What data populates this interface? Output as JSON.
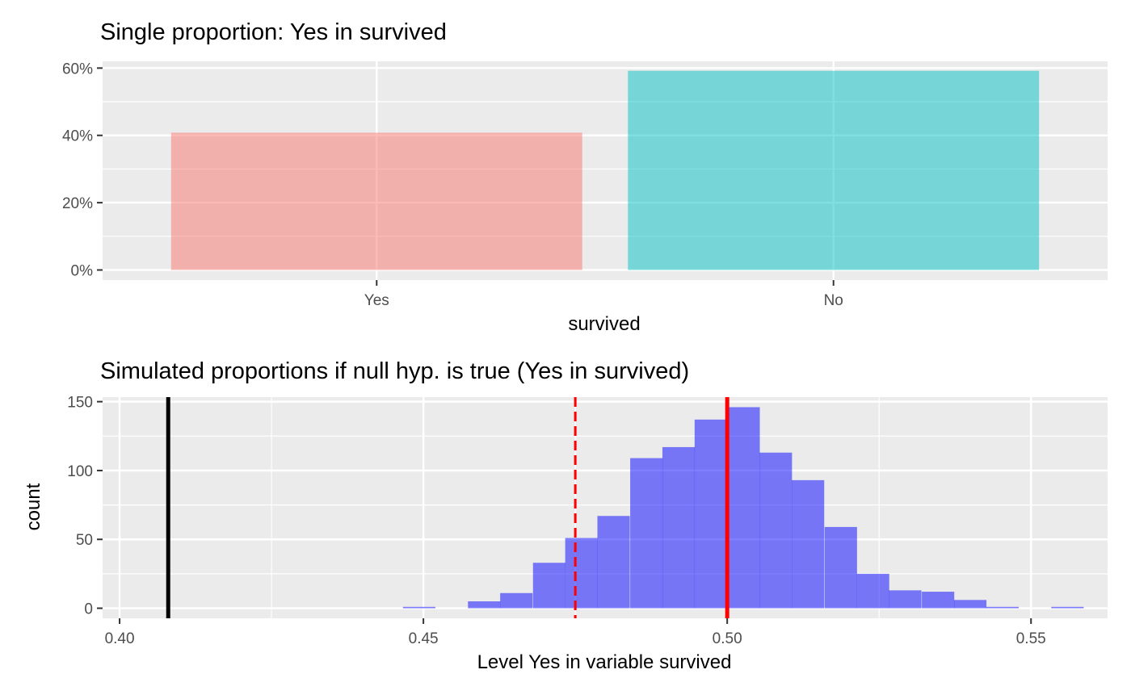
{
  "chart_data": [
    {
      "type": "bar",
      "title": "Single proportion: Yes in survived",
      "xlabel": "survived",
      "ylabel": "",
      "categories": [
        "Yes",
        "No"
      ],
      "values": [
        0.408,
        0.592
      ],
      "colors": [
        "#F8766D",
        "#00BFC4"
      ],
      "ylim": [
        -0.03,
        0.62
      ],
      "yticks": [
        0,
        0.2,
        0.4,
        0.6
      ],
      "ytick_labels": [
        "0%",
        "20%",
        "40%",
        "60%"
      ],
      "grid": true
    },
    {
      "type": "bar",
      "title": "Simulated proportions if null hyp. is true (Yes in survived)",
      "xlabel": "Level Yes in variable survived",
      "ylabel": "count",
      "bin_width": 0.00533,
      "bin_centers": [
        0.4493,
        0.4547,
        0.46,
        0.4653,
        0.4707,
        0.476,
        0.4813,
        0.4867,
        0.492,
        0.4973,
        0.5027,
        0.508,
        0.5133,
        0.5187,
        0.524,
        0.5293,
        0.5347,
        0.54,
        0.5453,
        0.5507,
        0.556
      ],
      "counts": [
        1,
        0,
        5,
        11,
        33,
        51,
        67,
        109,
        117,
        137,
        146,
        113,
        93,
        59,
        25,
        13,
        12,
        6,
        1,
        0,
        1
      ],
      "bar_color": "#0000FF",
      "xlim": [
        0.3972,
        0.5626
      ],
      "ylim": [
        -7.3,
        153.3
      ],
      "xticks": [
        0.4,
        0.45,
        0.5,
        0.55
      ],
      "xtick_labels": [
        "0.40",
        "0.45",
        "0.50",
        "0.55"
      ],
      "yticks": [
        0,
        50,
        100,
        150
      ],
      "ytick_labels": [
        "0",
        "50",
        "100",
        "150"
      ],
      "vlines": [
        {
          "x": 0.408,
          "color": "#000000",
          "style": "solid"
        },
        {
          "x": 0.475,
          "color": "#FF0000",
          "style": "dashed"
        },
        {
          "x": 0.5,
          "color": "#FF0000",
          "style": "solid"
        }
      ],
      "grid": true
    }
  ]
}
